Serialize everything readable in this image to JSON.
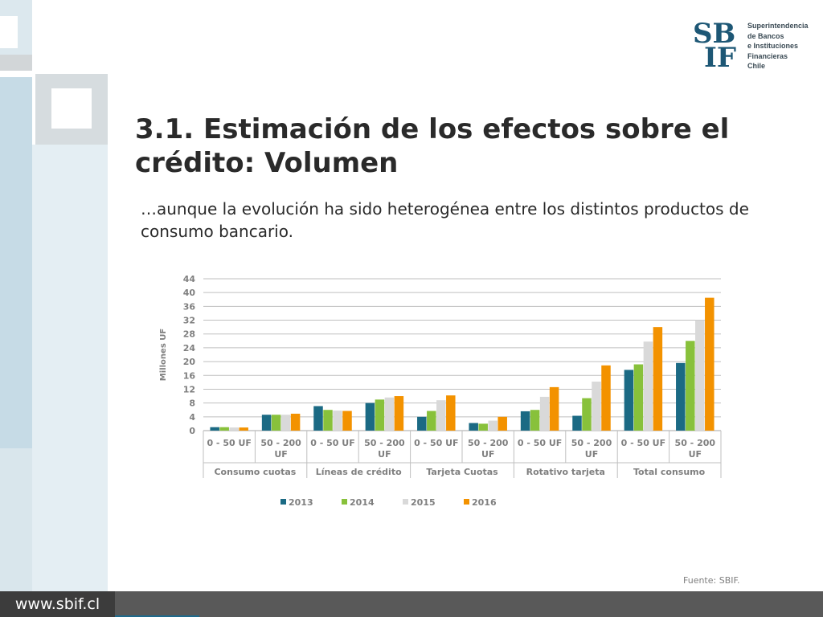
{
  "header": {
    "logo_text": "SBIF",
    "institution_lines": [
      "Superintendencia",
      "de Bancos",
      "e Instituciones",
      "Financieras",
      "Chile"
    ]
  },
  "slide": {
    "title": "3.1. Estimación de los efectos sobre el crédito: Volumen",
    "subtitle": "…aunque la evolución ha sido heterogénea entre los distintos productos de consumo bancario.",
    "source": "Fuente: SBIF."
  },
  "footer": {
    "url": "www.sbif.cl"
  },
  "colors": {
    "2013": "#1b6a84",
    "2014": "#88c13b",
    "2015": "#d9d9d9",
    "2016": "#f39200",
    "brand": "#1d5775"
  },
  "chart_data": {
    "type": "bar",
    "ylabel": "Millones UF",
    "ylim": [
      0,
      44
    ],
    "yticks": [
      0,
      4,
      8,
      12,
      16,
      20,
      24,
      28,
      32,
      36,
      40,
      44
    ],
    "grid": true,
    "legend_position": "bottom",
    "groups": [
      "Consumo cuotas",
      "Líneas de crédito",
      "Tarjeta Cuotas",
      "Rotativo tarjeta",
      "Total consumo"
    ],
    "categories": [
      [
        "0 - 50 UF"
      ],
      [
        "50 - 200",
        "UF"
      ],
      [
        "0 - 50 UF"
      ],
      [
        "50 - 200",
        "UF"
      ],
      [
        "0 - 50 UF"
      ],
      [
        "50 - 200",
        "UF"
      ],
      [
        "0 - 50 UF"
      ],
      [
        "50 - 200",
        "UF"
      ],
      [
        "0 - 50 UF"
      ],
      [
        "50 - 200",
        "UF"
      ]
    ],
    "series": [
      {
        "name": "2013",
        "values": [
          1.0,
          4.6,
          7.1,
          8.0,
          4.0,
          2.2,
          5.6,
          4.3,
          17.6,
          19.6
        ]
      },
      {
        "name": "2014",
        "values": [
          1.0,
          4.6,
          6.0,
          9.0,
          5.7,
          2.0,
          6.0,
          9.4,
          19.2,
          26.0
        ]
      },
      {
        "name": "2015",
        "values": [
          0.9,
          4.6,
          5.8,
          9.6,
          8.8,
          2.9,
          9.8,
          14.2,
          25.8,
          32.0
        ]
      },
      {
        "name": "2016",
        "values": [
          0.9,
          4.9,
          5.7,
          10.0,
          10.2,
          4.0,
          12.6,
          18.9,
          30.0,
          38.5
        ]
      }
    ]
  }
}
